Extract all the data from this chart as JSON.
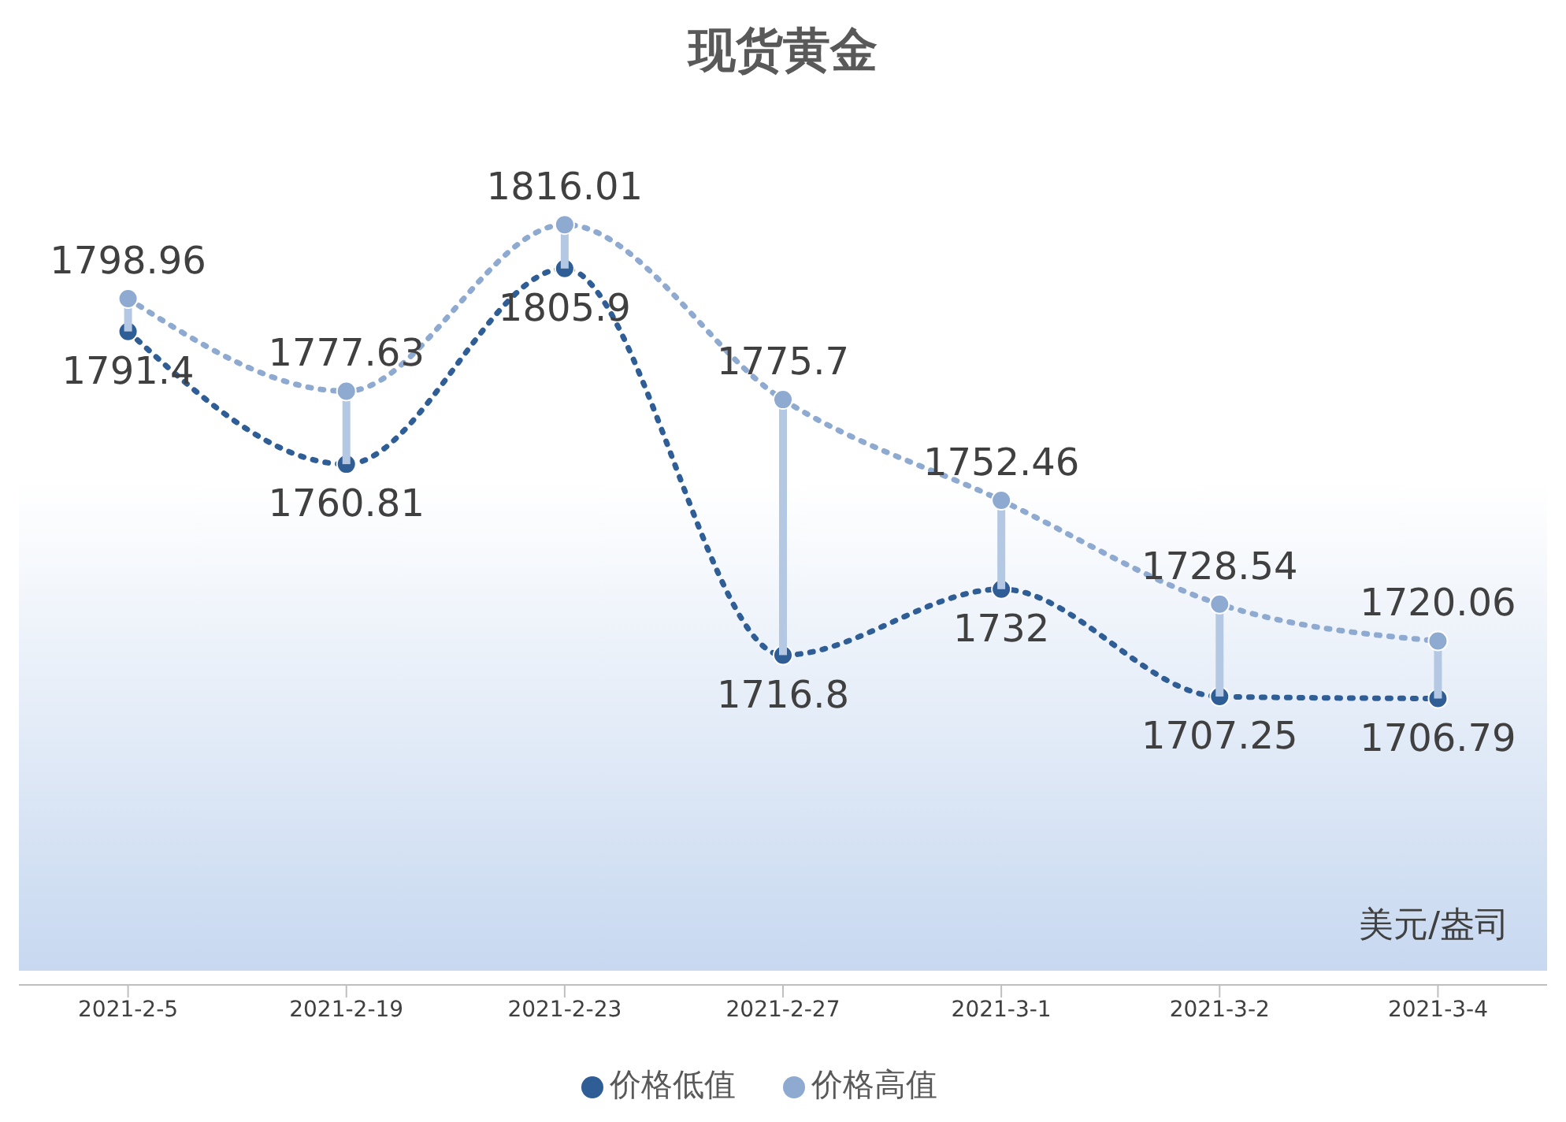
{
  "chart_data": {
    "type": "line",
    "title": "现货黄金",
    "categories": [
      "2021-2-5",
      "2021-2-19",
      "2021-2-23",
      "2021-2-27",
      "2021-3-1",
      "2021-3-2",
      "2021-3-4"
    ],
    "series": [
      {
        "name": "价格低值",
        "color": "#2f5d95",
        "values": [
          1791.4,
          1760.81,
          1805.9,
          1716.8,
          1732,
          1707.25,
          1706.79
        ]
      },
      {
        "name": "价格高值",
        "color": "#8faad0",
        "values": [
          1798.96,
          1777.63,
          1816.01,
          1775.7,
          1752.46,
          1728.54,
          1720.06
        ]
      }
    ],
    "data_labels": true,
    "grid": false,
    "legend": "bottom",
    "marker": "circle",
    "line_style": "dotted",
    "annotations": [
      "美元/盎司"
    ]
  }
}
